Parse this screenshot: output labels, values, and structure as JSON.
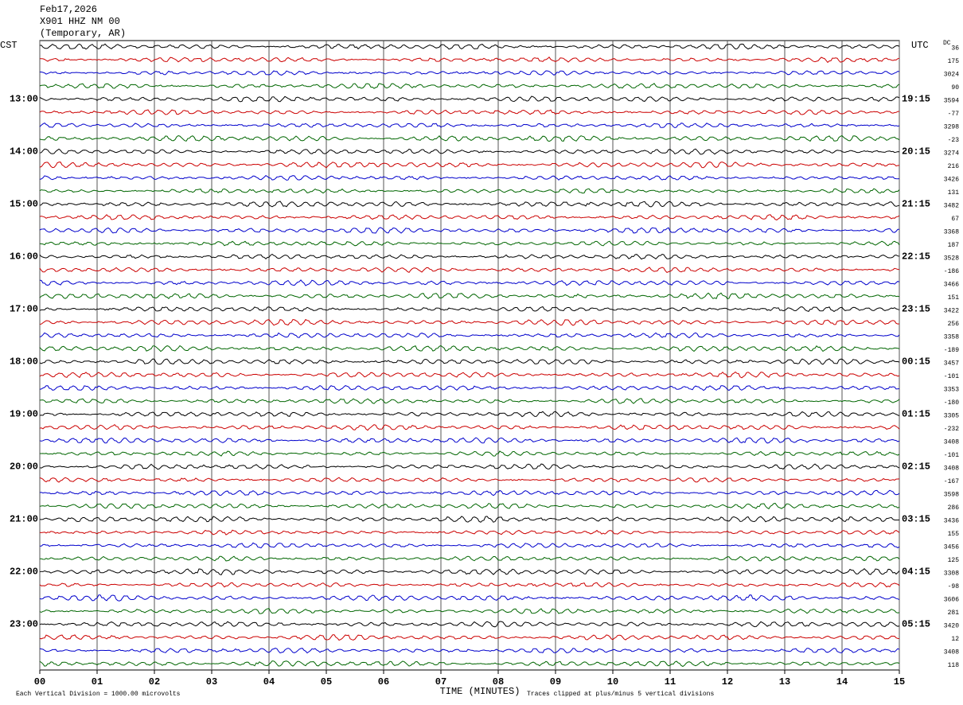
{
  "header": {
    "lines": [
      "Feb17,2026",
      "X901 HHZ NM 00",
      "(Temporary, AR)"
    ]
  },
  "left_axis": {
    "title": "CST",
    "labels": [
      "13:00",
      "14:00",
      "15:00",
      "16:00",
      "17:00",
      "18:00",
      "19:00",
      "20:00",
      "21:00",
      "22:00",
      "23:00"
    ]
  },
  "right_axis": {
    "title": "UTC",
    "labels": [
      "19:15",
      "20:15",
      "21:15",
      "22:15",
      "23:15",
      "00:15",
      "01:15",
      "02:15",
      "03:15",
      "04:15",
      "05:15"
    ]
  },
  "dc": {
    "title": "DC",
    "values": [
      36,
      175,
      3024,
      90,
      3594,
      -77,
      3298,
      -23,
      3274,
      216,
      3426,
      131,
      3482,
      67,
      3368,
      187,
      3528,
      -186,
      3466,
      151,
      3422,
      256,
      3358,
      -189,
      3457,
      -101,
      3353,
      -180,
      3305,
      -232,
      3408,
      -101,
      3408,
      -167,
      3598,
      286,
      3436,
      155,
      3456,
      125,
      3308,
      -98,
      3606,
      281,
      3420,
      12,
      3408,
      118
    ]
  },
  "x_axis": {
    "title": "TIME (MINUTES)",
    "labels": [
      "00",
      "01",
      "02",
      "03",
      "04",
      "05",
      "06",
      "07",
      "08",
      "09",
      "10",
      "11",
      "12",
      "13",
      "14",
      "15"
    ]
  },
  "footer": {
    "left": "Each Vertical Division = 1000.00 microvolts",
    "right": "Traces clipped at plus/minus 5 vertical divisions"
  },
  "trace_colors": [
    "#000000",
    "#cc0000",
    "#0000cc",
    "#006600"
  ]
}
